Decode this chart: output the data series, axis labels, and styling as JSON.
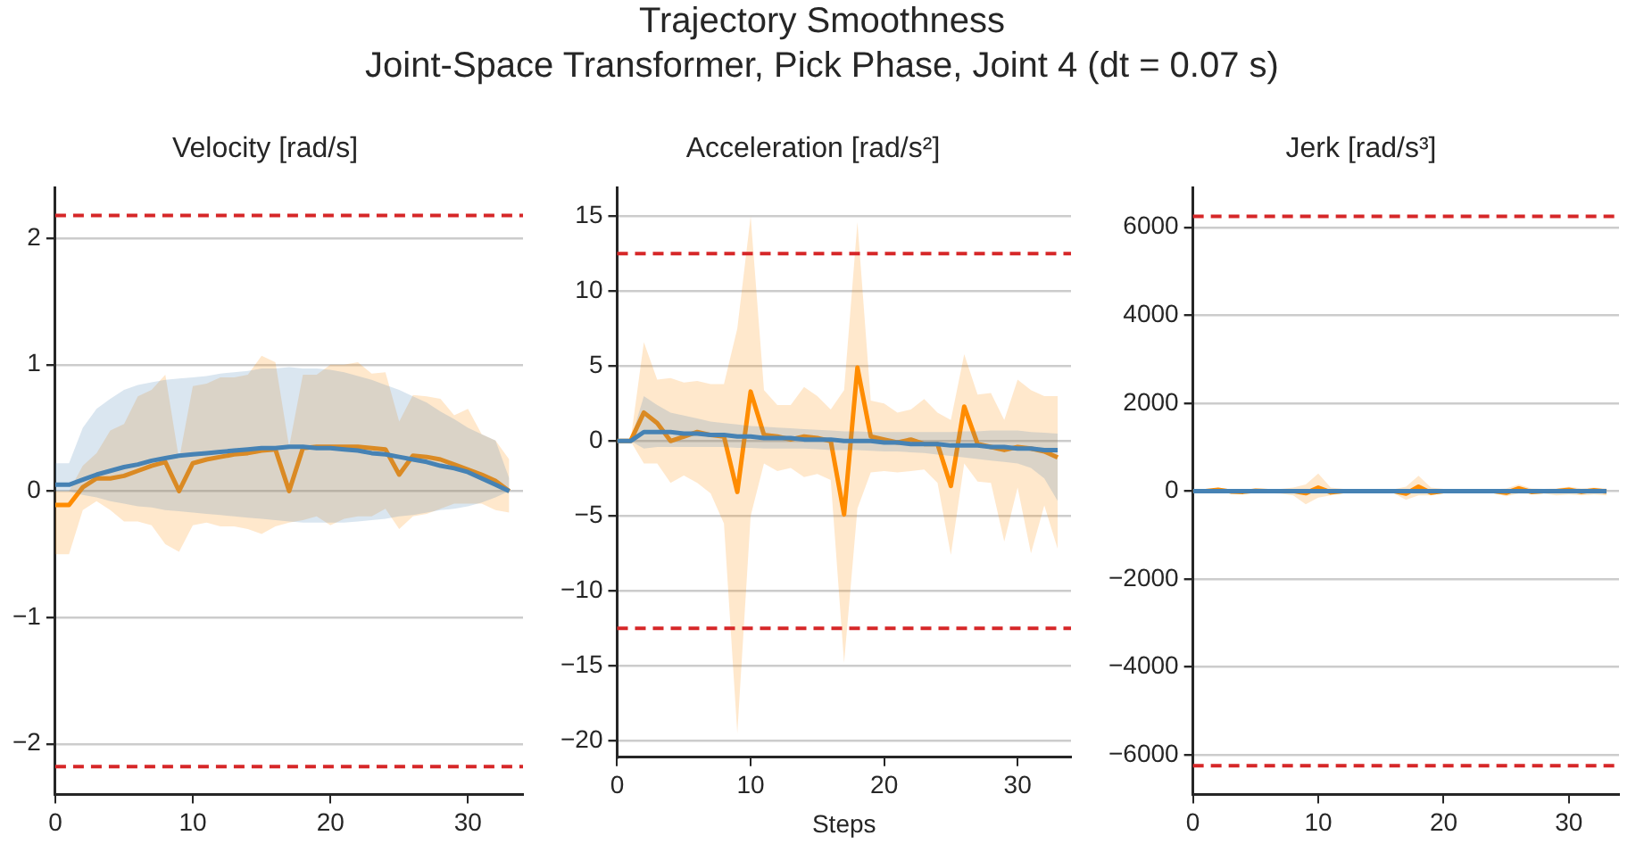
{
  "chart_data": [
    {
      "type": "line",
      "title": "Velocity [rad/s]",
      "annotations": [
        "Trajectory Smoothness",
        "Joint-Space Transformer, Pick Phase, Joint 4 (dt = 0.07 s)"
      ],
      "x": [
        0,
        1,
        2,
        3,
        4,
        5,
        6,
        7,
        8,
        9,
        10,
        11,
        12,
        13,
        14,
        15,
        16,
        17,
        18,
        19,
        20,
        21,
        22,
        23,
        24,
        25,
        26,
        27,
        28,
        29,
        30,
        31,
        32,
        33
      ],
      "xlim": [
        0,
        34
      ],
      "xticks": [
        0,
        10,
        20,
        30
      ],
      "ylim": [
        -2.4,
        2.4
      ],
      "yticks": [
        -2,
        -1,
        0,
        1,
        2
      ],
      "grid": "y",
      "series": [
        {
          "color": "#4682b4",
          "values": [
            0.05,
            0.05,
            0.09,
            0.13,
            0.16,
            0.19,
            0.21,
            0.24,
            0.26,
            0.28,
            0.29,
            0.3,
            0.31,
            0.32,
            0.33,
            0.34,
            0.34,
            0.35,
            0.35,
            0.34,
            0.34,
            0.33,
            0.32,
            0.3,
            0.29,
            0.27,
            0.25,
            0.23,
            0.2,
            0.18,
            0.15,
            0.1,
            0.05,
            0.0
          ],
          "lower": [
            0.0,
            0.0,
            -0.03,
            -0.05,
            -0.08,
            -0.1,
            -0.12,
            -0.13,
            -0.15,
            -0.16,
            -0.17,
            -0.18,
            -0.19,
            -0.2,
            -0.21,
            -0.22,
            -0.23,
            -0.24,
            -0.25,
            -0.25,
            -0.25,
            -0.25,
            -0.24,
            -0.23,
            -0.22,
            -0.2,
            -0.19,
            -0.17,
            -0.15,
            -0.14,
            -0.12,
            -0.09,
            -0.05,
            0.0
          ],
          "upper": [
            0.22,
            0.22,
            0.5,
            0.65,
            0.73,
            0.8,
            0.84,
            0.86,
            0.88,
            0.89,
            0.9,
            0.91,
            0.93,
            0.94,
            0.95,
            0.97,
            0.97,
            0.98,
            0.97,
            0.97,
            0.96,
            0.94,
            0.91,
            0.88,
            0.84,
            0.8,
            0.75,
            0.7,
            0.63,
            0.57,
            0.5,
            0.45,
            0.4,
            0.1
          ]
        },
        {
          "color": "#ff8c00",
          "values": [
            -0.11,
            -0.11,
            0.03,
            0.1,
            0.1,
            0.12,
            0.16,
            0.2,
            0.23,
            0.0,
            0.22,
            0.25,
            0.27,
            0.29,
            0.3,
            0.32,
            0.33,
            0.0,
            0.34,
            0.35,
            0.35,
            0.35,
            0.35,
            0.34,
            0.33,
            0.13,
            0.28,
            0.27,
            0.25,
            0.21,
            0.17,
            0.13,
            0.08,
            0.0
          ],
          "lower": [
            -0.5,
            -0.5,
            -0.15,
            -0.08,
            -0.15,
            -0.24,
            -0.24,
            -0.27,
            -0.42,
            -0.48,
            -0.27,
            -0.25,
            -0.28,
            -0.28,
            -0.3,
            -0.34,
            -0.28,
            -0.25,
            -0.23,
            -0.2,
            -0.27,
            -0.22,
            -0.2,
            -0.2,
            -0.14,
            -0.3,
            -0.2,
            -0.18,
            -0.14,
            -0.1,
            -0.1,
            -0.1,
            -0.15,
            -0.17
          ],
          "upper": [
            0.0,
            0.0,
            0.2,
            0.3,
            0.48,
            0.53,
            0.75,
            0.8,
            0.92,
            0.25,
            0.83,
            0.85,
            0.9,
            0.9,
            0.92,
            1.07,
            1.02,
            0.35,
            0.92,
            0.92,
            1.0,
            1.0,
            1.02,
            0.93,
            0.94,
            0.55,
            0.76,
            0.75,
            0.73,
            0.6,
            0.65,
            0.45,
            0.4,
            0.25
          ]
        }
      ],
      "ref_lines": [
        {
          "axis": "y",
          "value": 2.18,
          "color": "#d62728",
          "line_style": "dashed"
        },
        {
          "axis": "y",
          "value": -2.18,
          "color": "#d62728",
          "line_style": "dashed"
        }
      ]
    },
    {
      "type": "line",
      "title": "Acceleration [rad/s²]",
      "xlabel": "Steps",
      "x": [
        0,
        1,
        2,
        3,
        4,
        5,
        6,
        7,
        8,
        9,
        10,
        11,
        12,
        13,
        14,
        15,
        16,
        17,
        18,
        19,
        20,
        21,
        22,
        23,
        24,
        25,
        26,
        27,
        28,
        29,
        30,
        31,
        32,
        33
      ],
      "xlim": [
        0,
        34
      ],
      "xticks": [
        0,
        10,
        20,
        30
      ],
      "ylim": [
        -21.1,
        16.9
      ],
      "yticks": [
        -20,
        -15,
        -10,
        -5,
        0,
        5,
        10,
        15
      ],
      "grid": "y",
      "series": [
        {
          "color": "#4682b4",
          "values": [
            0,
            0,
            0.6,
            0.6,
            0.6,
            0.5,
            0.5,
            0.4,
            0.4,
            0.3,
            0.3,
            0.2,
            0.2,
            0.2,
            0.1,
            0.1,
            0.1,
            0,
            0,
            0,
            -0.1,
            -0.1,
            -0.2,
            -0.2,
            -0.2,
            -0.3,
            -0.3,
            -0.3,
            -0.4,
            -0.4,
            -0.5,
            -0.5,
            -0.6,
            -0.6
          ],
          "lower": [
            0,
            0,
            -0.5,
            -0.4,
            -0.4,
            -0.4,
            -0.4,
            -0.4,
            -0.4,
            -0.45,
            -0.45,
            -0.5,
            -0.5,
            -0.5,
            -0.5,
            -0.55,
            -0.6,
            -0.6,
            -0.6,
            -0.65,
            -0.7,
            -0.7,
            -0.75,
            -0.8,
            -0.9,
            -1.0,
            -1.1,
            -1.2,
            -1.3,
            -1.4,
            -1.5,
            -1.8,
            -2.5,
            -4.0
          ],
          "upper": [
            0,
            0,
            3.0,
            2.4,
            1.9,
            1.7,
            1.5,
            1.3,
            1.2,
            1.1,
            1.0,
            0.95,
            0.9,
            0.85,
            0.8,
            0.75,
            0.7,
            0.65,
            0.65,
            0.6,
            0.6,
            0.6,
            0.6,
            0.6,
            0.6,
            0.6,
            0.65,
            0.65,
            0.7,
            0.7,
            0.7,
            0.6,
            0.55,
            0.5
          ]
        },
        {
          "color": "#ff8c00",
          "values": [
            0,
            0,
            1.9,
            1.2,
            0,
            0.3,
            0.6,
            0.4,
            0.3,
            -3.4,
            3.3,
            0.4,
            0.3,
            0.1,
            0.3,
            0.2,
            0,
            -4.9,
            4.9,
            0.3,
            0.1,
            -0.1,
            0.1,
            -0.2,
            -0.2,
            -3,
            2.3,
            -0.2,
            -0.4,
            -0.6,
            -0.4,
            -0.5,
            -0.7,
            -1.1
          ],
          "lower": [
            0,
            0,
            -1.5,
            -1.5,
            -2.8,
            -2.3,
            -2.8,
            -3.5,
            -5.5,
            -19.5,
            -5,
            -1.5,
            -2,
            -1.8,
            -2.4,
            -2.2,
            -2.6,
            -14.8,
            -4.5,
            -2.1,
            -2,
            -2.1,
            -2,
            -1.9,
            -2.8,
            -7.6,
            -1.5,
            -2.7,
            -2.8,
            -6.7,
            -3.1,
            -7.5,
            -4.3,
            -7.2
          ],
          "upper": [
            0,
            0,
            6.6,
            4.1,
            4.2,
            3.9,
            4.0,
            3.8,
            3.8,
            7.5,
            15,
            3.4,
            2.4,
            2.4,
            3.6,
            3.0,
            2.1,
            3.4,
            14.6,
            2.7,
            2.5,
            1.9,
            2.1,
            2.8,
            1.9,
            1.4,
            5.8,
            3.1,
            3.2,
            1.4,
            4.1,
            3.4,
            3.0,
            3.0
          ]
        }
      ],
      "ref_lines": [
        {
          "axis": "y",
          "value": 12.5,
          "color": "#d62728",
          "line_style": "dashed"
        },
        {
          "axis": "y",
          "value": -12.5,
          "color": "#d62728",
          "line_style": "dashed"
        }
      ]
    },
    {
      "type": "line",
      "title": "Jerk [rad/s³]",
      "x": [
        0,
        1,
        2,
        3,
        4,
        5,
        6,
        7,
        8,
        9,
        10,
        11,
        12,
        13,
        14,
        15,
        16,
        17,
        18,
        19,
        20,
        21,
        22,
        23,
        24,
        25,
        26,
        27,
        28,
        29,
        30,
        31,
        32,
        33
      ],
      "xlim": [
        0,
        34
      ],
      "xticks": [
        0,
        10,
        20,
        30
      ],
      "ylim": [
        -6900,
        6900
      ],
      "yticks": [
        -6000,
        -4000,
        -2000,
        0,
        2000,
        4000,
        6000
      ],
      "grid": "y",
      "series": [
        {
          "color": "#4682b4",
          "values": [
            0,
            0,
            0,
            0,
            0,
            0,
            0,
            0,
            0,
            0,
            0,
            0,
            0,
            0,
            0,
            0,
            0,
            0,
            0,
            0,
            0,
            0,
            0,
            0,
            0,
            0,
            0,
            0,
            0,
            0,
            0,
            0,
            0,
            0
          ]
        },
        {
          "color": "#ff8c00",
          "values": [
            0,
            0,
            30,
            -10,
            -20,
            10,
            0,
            0,
            0,
            -50,
            80,
            -30,
            0,
            0,
            0,
            0,
            0,
            -60,
            100,
            -40,
            0,
            0,
            0,
            0,
            0,
            -40,
            60,
            -20,
            0,
            0,
            30,
            -20,
            20,
            -10
          ],
          "lower": [
            0,
            0,
            -20,
            -40,
            -50,
            -40,
            -50,
            -60,
            -100,
            -300,
            -150,
            -100,
            -50,
            -40,
            -40,
            -40,
            -50,
            -200,
            -100,
            -100,
            -40,
            -40,
            -40,
            -40,
            -50,
            -120,
            -60,
            -70,
            -60,
            -100,
            -80,
            -100,
            -80,
            -100
          ],
          "upper": [
            0,
            0,
            80,
            40,
            40,
            40,
            40,
            50,
            80,
            150,
            400,
            80,
            50,
            40,
            40,
            40,
            40,
            100,
            350,
            80,
            50,
            40,
            40,
            40,
            40,
            60,
            150,
            60,
            50,
            60,
            100,
            60,
            80,
            60
          ]
        }
      ],
      "ref_lines": [
        {
          "axis": "y",
          "value": 6250,
          "color": "#d62728",
          "line_style": "dashed"
        },
        {
          "axis": "y",
          "value": -6250,
          "color": "#d62728",
          "line_style": "dashed"
        }
      ]
    }
  ]
}
